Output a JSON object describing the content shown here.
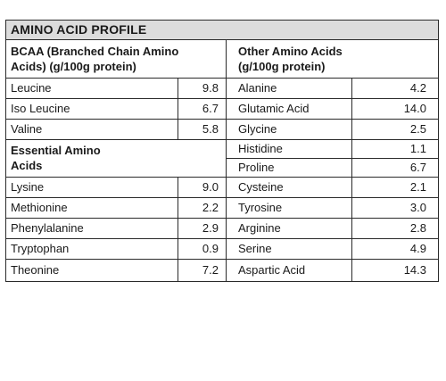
{
  "title": "AMINO ACID PROFILE",
  "bcaa_header": [
    "BCAA (Branched Chain Amino",
    "Acids) (g/100g protein)"
  ],
  "other_header": [
    "Other Amino Acids",
    "(g/100g protein)"
  ],
  "essential_header": [
    "Essential Amino",
    "Acids"
  ],
  "bcaa": [
    {
      "name": "Leucine",
      "value": "9.8"
    },
    {
      "name": "Iso Leucine",
      "value": "6.7"
    },
    {
      "name": "Valine",
      "value": "5.8"
    }
  ],
  "essential": [
    {
      "name": "Lysine",
      "value": "9.0"
    },
    {
      "name": "Methionine",
      "value": "2.2"
    },
    {
      "name": "Phenylalanine",
      "value": "2.9"
    },
    {
      "name": "Tryptophan",
      "value": "0.9"
    },
    {
      "name": "Theonine",
      "value": "7.2"
    }
  ],
  "other": [
    {
      "name": "Alanine",
      "value": "4.2"
    },
    {
      "name": "Glutamic Acid",
      "value": "14.0"
    },
    {
      "name": "Glycine",
      "value": "2.5"
    },
    {
      "name": "Histidine",
      "value": "1.1"
    },
    {
      "name": "Proline",
      "value": "6.7"
    },
    {
      "name": "Cysteine",
      "value": "2.1"
    },
    {
      "name": "Tyrosine",
      "value": "3.0"
    },
    {
      "name": "Arginine",
      "value": "2.8"
    },
    {
      "name": "Serine",
      "value": "4.9"
    },
    {
      "name": "Aspartic Acid",
      "value": "14.3"
    }
  ]
}
